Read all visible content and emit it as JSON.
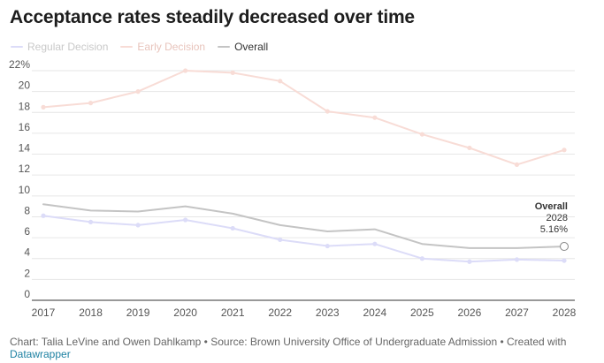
{
  "header": {
    "title": "Acceptance rates steadily decreased over time"
  },
  "chart_data": {
    "type": "line",
    "title": "Acceptance rates steadily decreased over time",
    "x": [
      2017,
      2018,
      2019,
      2020,
      2021,
      2022,
      2023,
      2024,
      2025,
      2026,
      2027,
      2028
    ],
    "ylim": [
      0,
      22
    ],
    "yticks": [
      0,
      2,
      4,
      6,
      8,
      10,
      12,
      14,
      16,
      18,
      20,
      22
    ],
    "ytick_labels": [
      "0",
      "2",
      "4",
      "6",
      "8",
      "10",
      "12",
      "14",
      "16",
      "18",
      "20",
      "22%"
    ],
    "xlabel": "",
    "ylabel": "",
    "grid": true,
    "legend_position": "top-left",
    "series": [
      {
        "name": "Regular Decision",
        "color": "#dcdcf8",
        "values": [
          8.1,
          7.5,
          7.2,
          7.7,
          6.9,
          5.8,
          5.2,
          5.4,
          4.0,
          3.7,
          3.9,
          3.8
        ]
      },
      {
        "name": "Early Decision",
        "color": "#f8dcd6",
        "values": [
          18.5,
          18.9,
          20.0,
          22.0,
          21.8,
          21.0,
          18.1,
          17.5,
          15.9,
          14.6,
          13.0,
          14.4
        ]
      },
      {
        "name": "Overall",
        "color": "#c4c4c4",
        "values": [
          9.2,
          8.6,
          8.5,
          9.0,
          8.3,
          7.2,
          6.6,
          6.8,
          5.4,
          5.0,
          5.0,
          5.16
        ]
      }
    ],
    "annotation": {
      "series": "Overall",
      "year": "2028",
      "label": "5.16%"
    }
  },
  "footer": {
    "text": "Chart: Talia LeVine and Owen Dahlkamp • Source: Brown University Office of Undergraduate Admission • Created with ",
    "link": "Datawrapper"
  }
}
